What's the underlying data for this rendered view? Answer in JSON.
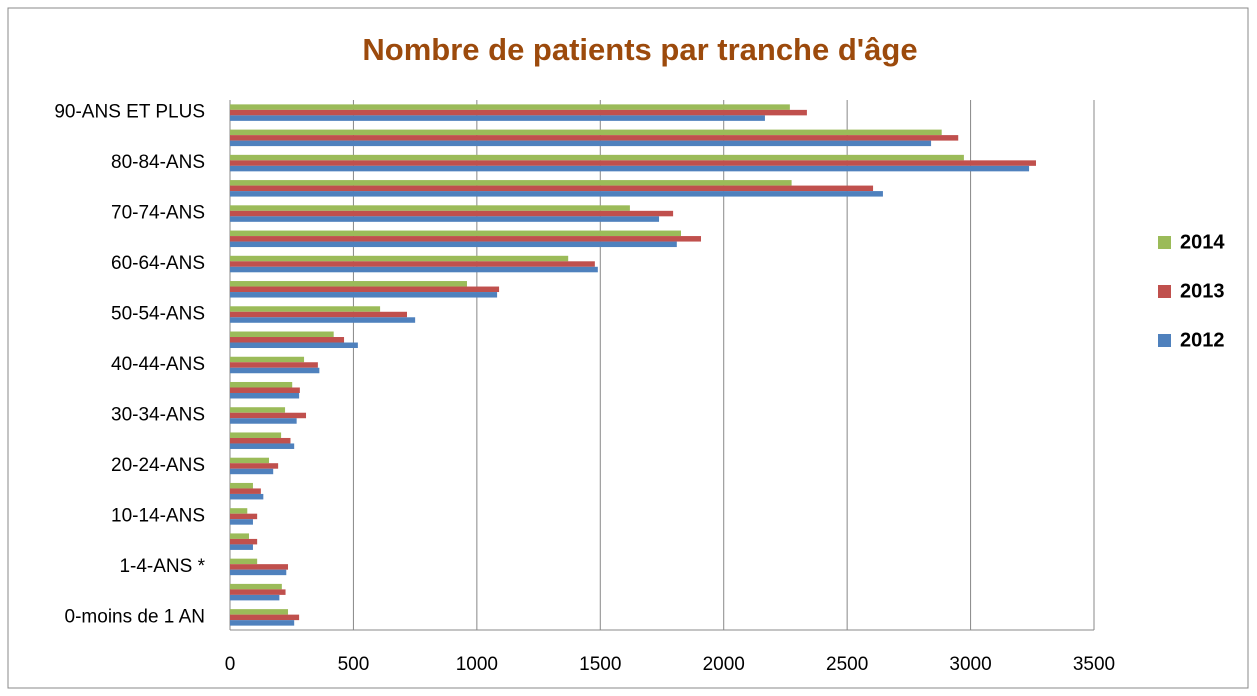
{
  "chart_data": {
    "type": "hbar",
    "title": "Nombre de patients par tranche d'âge",
    "categories": [
      "0-moins de 1 AN",
      null,
      "1-4-ANS *",
      null,
      "10-14-ANS",
      null,
      "20-24-ANS",
      null,
      "30-34-ANS",
      null,
      "40-44-ANS",
      null,
      "50-54-ANS",
      null,
      "60-64-ANS",
      null,
      "70-74-ANS",
      null,
      "80-84-ANS",
      null,
      "90-ANS ET PLUS"
    ],
    "series": [
      {
        "name": "2014",
        "color": "#9bbb59",
        "values": [
          235,
          210,
          110,
          77,
          70,
          93,
          158,
          207,
          223,
          252,
          300,
          420,
          608,
          960,
          1370,
          1827,
          1620,
          2275,
          2973,
          2883,
          2268
        ]
      },
      {
        "name": "2013",
        "color": "#c0504d",
        "values": [
          280,
          225,
          235,
          110,
          110,
          125,
          195,
          245,
          308,
          283,
          356,
          462,
          717,
          1090,
          1478,
          1908,
          1795,
          2605,
          3265,
          2950,
          2337
        ]
      },
      {
        "name": "2012",
        "color": "#4f81bd",
        "values": [
          260,
          200,
          228,
          93,
          93,
          135,
          175,
          260,
          270,
          280,
          362,
          518,
          750,
          1082,
          1490,
          1810,
          1738,
          2645,
          3237,
          2840,
          2167
        ]
      }
    ],
    "xlim": [
      0,
      3500
    ],
    "xticks": [
      0,
      500,
      1000,
      1500,
      2000,
      2500,
      3000,
      3500
    ],
    "grid": true,
    "legend": "right"
  }
}
